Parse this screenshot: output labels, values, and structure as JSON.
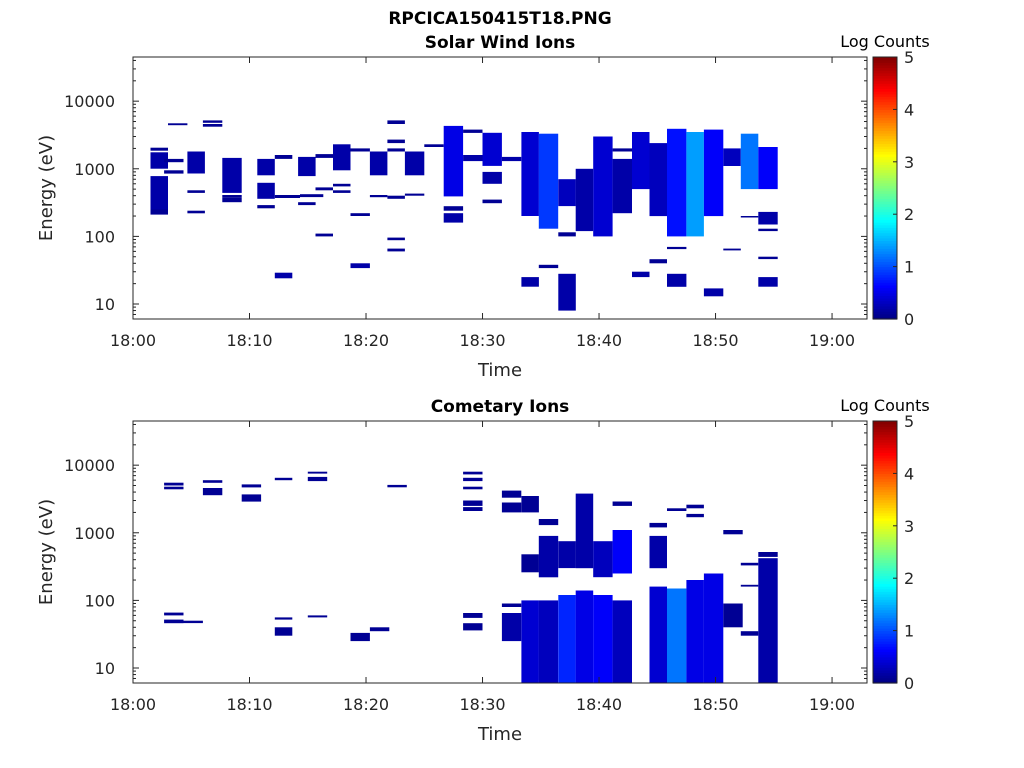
{
  "figure": {
    "title": "RPCICA150415T18.PNG"
  },
  "chart_data": [
    {
      "type": "heatmap",
      "title": "Solar Wind Ions",
      "xlabel": "Time",
      "ylabel": "Energy (eV)",
      "yscale": "log",
      "xlim": [
        "18:00",
        "19:03"
      ],
      "ylim": [
        6,
        45000
      ],
      "xticks": [
        "18:00",
        "18:10",
        "18:20",
        "18:30",
        "18:40",
        "18:50",
        "19:00"
      ],
      "yticks": [
        10,
        100,
        1000,
        10000
      ],
      "ytick_labels": [
        "10",
        "100",
        "1000",
        "10000"
      ],
      "colorbar": {
        "label": "Log Counts",
        "min": 0,
        "max": 5,
        "ticks": [
          "0",
          "1",
          "2",
          "3",
          "4",
          "5"
        ],
        "colormap": "jet"
      },
      "cells": [
        [
          "18:01:30",
          "18:03:00",
          240,
          780,
          0.2
        ],
        [
          "18:01:30",
          "18:03:00",
          1000,
          1750,
          0.2
        ],
        [
          "18:01:30",
          "18:03:00",
          1850,
          2050,
          0.1
        ],
        [
          "18:01:30",
          "18:03:00",
          210,
          250,
          0.1
        ],
        [
          "18:02:40",
          "18:04:20",
          1250,
          1400,
          0.1
        ],
        [
          "18:02:40",
          "18:04:20",
          850,
          950,
          0.1
        ],
        [
          "18:03:00",
          "18:04:40",
          4400,
          4700,
          0.1
        ],
        [
          "18:04:40",
          "18:06:10",
          850,
          1800,
          0.2
        ],
        [
          "18:04:40",
          "18:06:10",
          440,
          480,
          0.1
        ],
        [
          "18:04:40",
          "18:06:10",
          220,
          240,
          0.1
        ],
        [
          "18:06:00",
          "18:07:40",
          4200,
          4600,
          0.1
        ],
        [
          "18:06:00",
          "18:07:40",
          4800,
          5200,
          0.1
        ],
        [
          "18:07:40",
          "18:09:20",
          440,
          1450,
          0.2
        ],
        [
          "18:07:40",
          "18:09:20",
          320,
          380,
          0.1
        ],
        [
          "18:07:40",
          "18:09:20",
          380,
          410,
          0.1
        ],
        [
          "18:10:40",
          "18:12:10",
          800,
          1400,
          0.2
        ],
        [
          "18:10:40",
          "18:12:10",
          360,
          620,
          0.2
        ],
        [
          "18:10:40",
          "18:12:10",
          260,
          290,
          0.1
        ],
        [
          "18:12:10",
          "18:13:40",
          1400,
          1600,
          0.1
        ],
        [
          "18:12:10",
          "18:14:20",
          370,
          410,
          0.1
        ],
        [
          "18:12:10",
          "18:13:40",
          24,
          29,
          0.2
        ],
        [
          "18:14:10",
          "18:15:40",
          780,
          1500,
          0.2
        ],
        [
          "18:14:10",
          "18:15:40",
          290,
          320,
          0.1
        ],
        [
          "18:14:20",
          "18:16:20",
          380,
          420,
          0.1
        ],
        [
          "18:15:40",
          "18:17:10",
          1450,
          1650,
          0.1
        ],
        [
          "18:15:40",
          "18:17:10",
          480,
          530,
          0.1
        ],
        [
          "18:15:40",
          "18:17:10",
          100,
          110,
          0.1
        ],
        [
          "18:17:10",
          "18:18:40",
          950,
          2300,
          0.2
        ],
        [
          "18:17:10",
          "18:18:40",
          550,
          600,
          0.1
        ],
        [
          "18:17:10",
          "18:18:40",
          440,
          480,
          0.1
        ],
        [
          "18:18:40",
          "18:20:20",
          1800,
          2000,
          0.1
        ],
        [
          "18:18:40",
          "18:20:20",
          200,
          220,
          0.1
        ],
        [
          "18:18:40",
          "18:20:20",
          34,
          40,
          0.2
        ],
        [
          "18:20:20",
          "18:21:50",
          800,
          1800,
          0.2
        ],
        [
          "18:20:20",
          "18:21:50",
          380,
          410,
          0.1
        ],
        [
          "18:21:50",
          "18:23:20",
          4600,
          5200,
          0.1
        ],
        [
          "18:21:50",
          "18:23:20",
          2400,
          2700,
          0.1
        ],
        [
          "18:21:50",
          "18:23:20",
          1800,
          2000,
          0.1
        ],
        [
          "18:21:50",
          "18:23:20",
          360,
          400,
          0.1
        ],
        [
          "18:21:50",
          "18:23:20",
          88,
          96,
          0.1
        ],
        [
          "18:21:50",
          "18:23:20",
          60,
          66,
          0.1
        ],
        [
          "18:23:20",
          "18:25:00",
          800,
          1800,
          0.2
        ],
        [
          "18:23:20",
          "18:25:00",
          400,
          430,
          0.1
        ],
        [
          "18:25:00",
          "18:26:40",
          2100,
          2300,
          0.1
        ],
        [
          "18:26:40",
          "18:28:20",
          390,
          4300,
          0.5
        ],
        [
          "18:26:40",
          "18:28:20",
          160,
          220,
          0.2
        ],
        [
          "18:26:40",
          "18:28:20",
          240,
          280,
          0.1
        ],
        [
          "18:28:20",
          "18:30:00",
          3400,
          3800,
          0.1
        ],
        [
          "18:28:20",
          "18:30:00",
          1300,
          1600,
          0.2
        ],
        [
          "18:30:00",
          "18:31:40",
          1100,
          3400,
          0.4
        ],
        [
          "18:30:00",
          "18:31:40",
          600,
          900,
          0.2
        ],
        [
          "18:30:00",
          "18:31:40",
          310,
          350,
          0.1
        ],
        [
          "18:31:40",
          "18:33:20",
          1300,
          1500,
          0.2
        ],
        [
          "18:33:20",
          "18:34:50",
          200,
          3500,
          0.4
        ],
        [
          "18:33:20",
          "18:34:50",
          18,
          25,
          0.2
        ],
        [
          "18:34:50",
          "18:36:30",
          130,
          3300,
          0.9
        ],
        [
          "18:34:50",
          "18:36:30",
          34,
          38,
          0.1
        ],
        [
          "18:36:30",
          "18:38:00",
          280,
          700,
          0.3
        ],
        [
          "18:36:30",
          "18:38:00",
          100,
          115,
          0.1
        ],
        [
          "18:36:30",
          "18:38:00",
          8,
          28,
          0.2
        ],
        [
          "18:38:00",
          "18:39:30",
          120,
          1000,
          0.2
        ],
        [
          "18:39:30",
          "18:41:10",
          100,
          3000,
          0.4
        ],
        [
          "18:41:10",
          "18:42:50",
          220,
          1400,
          0.2
        ],
        [
          "18:41:10",
          "18:42:50",
          1800,
          2000,
          0.1
        ],
        [
          "18:42:50",
          "18:44:20",
          500,
          3500,
          0.4
        ],
        [
          "18:42:50",
          "18:44:20",
          25,
          30,
          0.2
        ],
        [
          "18:44:20",
          "18:45:50",
          200,
          2400,
          0.3
        ],
        [
          "18:44:20",
          "18:45:50",
          40,
          46,
          0.1
        ],
        [
          "18:45:50",
          "18:47:30",
          100,
          3900,
          0.7
        ],
        [
          "18:45:50",
          "18:47:30",
          18,
          28,
          0.2
        ],
        [
          "18:45:50",
          "18:47:30",
          65,
          70,
          0.1
        ],
        [
          "18:47:30",
          "18:49:00",
          100,
          3500,
          1.4
        ],
        [
          "18:49:00",
          "18:50:40",
          200,
          3800,
          0.6
        ],
        [
          "18:49:00",
          "18:50:40",
          13,
          17,
          0.2
        ],
        [
          "18:50:40",
          "18:52:10",
          1100,
          2000,
          0.3
        ],
        [
          "18:50:40",
          "18:52:10",
          62,
          66,
          0.1
        ],
        [
          "18:52:10",
          "18:53:40",
          500,
          3300,
          1.2
        ],
        [
          "18:52:10",
          "18:53:40",
          190,
          200,
          0.1
        ],
        [
          "18:53:40",
          "18:55:20",
          500,
          2100,
          0.6
        ],
        [
          "18:53:40",
          "18:55:20",
          150,
          230,
          0.2
        ],
        [
          "18:53:40",
          "18:55:20",
          120,
          130,
          0.1
        ],
        [
          "18:53:40",
          "18:55:20",
          46,
          50,
          0.1
        ],
        [
          "18:53:40",
          "18:55:20",
          18,
          25,
          0.2
        ]
      ]
    },
    {
      "type": "heatmap",
      "title": "Cometary Ions",
      "xlabel": "Time",
      "ylabel": "Energy (eV)",
      "yscale": "log",
      "xlim": [
        "18:00",
        "19:03"
      ],
      "ylim": [
        6,
        45000
      ],
      "xticks": [
        "18:00",
        "18:10",
        "18:20",
        "18:30",
        "18:40",
        "18:50",
        "19:00"
      ],
      "yticks": [
        10,
        100,
        1000,
        10000
      ],
      "ytick_labels": [
        "10",
        "100",
        "1000",
        "10000"
      ],
      "colorbar": {
        "label": "Log Counts",
        "min": 0,
        "max": 5,
        "ticks": [
          "0",
          "1",
          "2",
          "3",
          "4",
          "5"
        ],
        "colormap": "jet"
      },
      "cells": [
        [
          "18:02:40",
          "18:04:20",
          5000,
          5500,
          0.1
        ],
        [
          "18:02:40",
          "18:04:20",
          4400,
          4800,
          0.1
        ],
        [
          "18:02:40",
          "18:04:20",
          60,
          66,
          0.1
        ],
        [
          "18:02:40",
          "18:04:20",
          46,
          52,
          0.1
        ],
        [
          "18:04:20",
          "18:06:00",
          46,
          50,
          0.1
        ],
        [
          "18:06:00",
          "18:07:40",
          5500,
          6000,
          0.1
        ],
        [
          "18:06:00",
          "18:07:40",
          3600,
          4600,
          0.1
        ],
        [
          "18:09:20",
          "18:11:00",
          4700,
          5200,
          0.1
        ],
        [
          "18:09:20",
          "18:11:00",
          2900,
          3700,
          0.1
        ],
        [
          "18:12:10",
          "18:13:40",
          6000,
          6500,
          0.1
        ],
        [
          "18:12:10",
          "18:13:40",
          52,
          56,
          0.1
        ],
        [
          "18:12:10",
          "18:13:40",
          30,
          40,
          0.1
        ],
        [
          "18:15:00",
          "18:16:40",
          7500,
          8000,
          0.1
        ],
        [
          "18:15:00",
          "18:16:40",
          5800,
          6700,
          0.1
        ],
        [
          "18:15:00",
          "18:16:40",
          56,
          60,
          0.1
        ],
        [
          "18:18:40",
          "18:20:20",
          25,
          33,
          0.1
        ],
        [
          "18:20:20",
          "18:22:00",
          35,
          40,
          0.1
        ],
        [
          "18:21:50",
          "18:23:30",
          4700,
          5100,
          0.1
        ],
        [
          "18:28:20",
          "18:30:00",
          7300,
          8000,
          0.1
        ],
        [
          "18:28:20",
          "18:30:00",
          5800,
          6500,
          0.1
        ],
        [
          "18:28:20",
          "18:30:00",
          4400,
          4800,
          0.1
        ],
        [
          "18:28:20",
          "18:30:00",
          2500,
          3000,
          0.1
        ],
        [
          "18:28:20",
          "18:30:00",
          2100,
          2400,
          0.1
        ],
        [
          "18:28:20",
          "18:30:00",
          55,
          65,
          0.1
        ],
        [
          "18:28:20",
          "18:30:00",
          36,
          46,
          0.1
        ],
        [
          "18:31:40",
          "18:33:20",
          3300,
          4200,
          0.1
        ],
        [
          "18:31:40",
          "18:33:20",
          2000,
          2800,
          0.1
        ],
        [
          "18:31:40",
          "18:33:20",
          80,
          90,
          0.1
        ],
        [
          "18:31:40",
          "18:33:20",
          25,
          65,
          0.2
        ],
        [
          "18:33:20",
          "18:34:50",
          2000,
          3500,
          0.1
        ],
        [
          "18:33:20",
          "18:34:50",
          260,
          480,
          0.1
        ],
        [
          "18:33:20",
          "18:34:50",
          6,
          100,
          0.4
        ],
        [
          "18:34:50",
          "18:36:30",
          220,
          900,
          0.2
        ],
        [
          "18:34:50",
          "18:36:30",
          6,
          100,
          0.3
        ],
        [
          "18:34:50",
          "18:36:30",
          1300,
          1600,
          0.1
        ],
        [
          "18:36:30",
          "18:38:00",
          300,
          750,
          0.2
        ],
        [
          "18:36:30",
          "18:38:00",
          6,
          120,
          0.8
        ],
        [
          "18:38:00",
          "18:39:30",
          300,
          3800,
          0.2
        ],
        [
          "18:38:00",
          "18:39:30",
          6,
          140,
          0.5
        ],
        [
          "18:39:30",
          "18:41:10",
          220,
          750,
          0.3
        ],
        [
          "18:39:30",
          "18:41:10",
          6,
          120,
          0.6
        ],
        [
          "18:41:10",
          "18:42:50",
          250,
          1100,
          0.6
        ],
        [
          "18:41:10",
          "18:42:50",
          6,
          100,
          0.3
        ],
        [
          "18:41:10",
          "18:42:50",
          2500,
          2900,
          0.1
        ],
        [
          "18:44:20",
          "18:45:50",
          300,
          900,
          0.2
        ],
        [
          "18:44:20",
          "18:45:50",
          6,
          160,
          0.4
        ],
        [
          "18:44:20",
          "18:45:50",
          1200,
          1400,
          0.1
        ],
        [
          "18:45:50",
          "18:47:30",
          6,
          150,
          1.2
        ],
        [
          "18:45:50",
          "18:47:30",
          2100,
          2300,
          0.1
        ],
        [
          "18:47:30",
          "18:49:00",
          6,
          200,
          0.5
        ],
        [
          "18:47:30",
          "18:49:00",
          2300,
          2600,
          0.1
        ],
        [
          "18:47:30",
          "18:49:00",
          1700,
          1900,
          0.1
        ],
        [
          "18:49:00",
          "18:50:40",
          6,
          250,
          0.5
        ],
        [
          "18:50:40",
          "18:52:20",
          40,
          90,
          0.1
        ],
        [
          "18:50:40",
          "18:52:20",
          950,
          1100,
          0.1
        ],
        [
          "18:52:10",
          "18:53:40",
          30,
          35,
          0.1
        ],
        [
          "18:52:10",
          "18:53:40",
          160,
          170,
          0.1
        ],
        [
          "18:52:10",
          "18:53:40",
          330,
          360,
          0.1
        ],
        [
          "18:53:40",
          "18:55:20",
          6,
          420,
          0.2
        ],
        [
          "18:53:40",
          "18:55:20",
          440,
          520,
          0.1
        ]
      ]
    }
  ]
}
